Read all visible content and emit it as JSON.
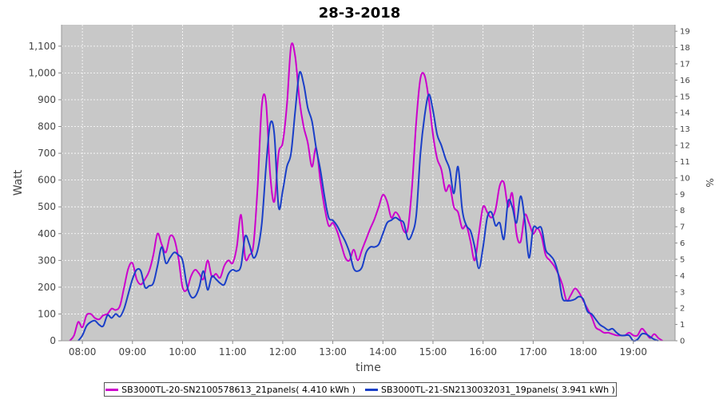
{
  "chart_data": {
    "type": "line",
    "title": "28-3-2018",
    "xlabel": "time",
    "ylabel": "Watt",
    "ylabel_right": "%",
    "xlim": [
      "07:35",
      "19:50"
    ],
    "ylim": [
      0,
      1180
    ],
    "ylim_right": [
      0,
      19.4
    ],
    "x_ticks": [
      "08:00",
      "09:00",
      "10:00",
      "11:00",
      "12:00",
      "13:00",
      "14:00",
      "15:00",
      "16:00",
      "17:00",
      "18:00",
      "19:00"
    ],
    "y_ticks": [
      "0",
      "100",
      "200",
      "300",
      "400",
      "500",
      "600",
      "700",
      "800",
      "900",
      "1,000",
      "1,100"
    ],
    "y_ticks_right": [
      "0",
      "1",
      "2",
      "3",
      "4",
      "5",
      "6",
      "7",
      "8",
      "9",
      "10",
      "11",
      "12",
      "13",
      "14",
      "15",
      "16",
      "17",
      "18",
      "19"
    ],
    "grid": true,
    "legend_position": "bottom",
    "background": "#c8c8c8",
    "series": [
      {
        "name": "SB3000TL-20-SN2100578613_21panels( 4.410 kWh )",
        "color": "#cc00cc",
        "points": [
          [
            "07:45",
            0
          ],
          [
            "07:50",
            20
          ],
          [
            "07:55",
            70
          ],
          [
            "08:00",
            50
          ],
          [
            "08:05",
            95
          ],
          [
            "08:10",
            100
          ],
          [
            "08:15",
            85
          ],
          [
            "08:20",
            80
          ],
          [
            "08:25",
            95
          ],
          [
            "08:30",
            100
          ],
          [
            "08:35",
            120
          ],
          [
            "08:40",
            115
          ],
          [
            "08:45",
            130
          ],
          [
            "08:50",
            200
          ],
          [
            "08:55",
            270
          ],
          [
            "09:00",
            290
          ],
          [
            "09:05",
            230
          ],
          [
            "09:10",
            210
          ],
          [
            "09:15",
            230
          ],
          [
            "09:20",
            260
          ],
          [
            "09:25",
            320
          ],
          [
            "09:30",
            400
          ],
          [
            "09:35",
            360
          ],
          [
            "09:40",
            330
          ],
          [
            "09:45",
            390
          ],
          [
            "09:50",
            380
          ],
          [
            "09:55",
            310
          ],
          [
            "10:00",
            200
          ],
          [
            "10:05",
            190
          ],
          [
            "10:10",
            240
          ],
          [
            "10:15",
            265
          ],
          [
            "10:20",
            250
          ],
          [
            "10:25",
            230
          ],
          [
            "10:30",
            300
          ],
          [
            "10:35",
            240
          ],
          [
            "10:40",
            250
          ],
          [
            "10:45",
            235
          ],
          [
            "10:50",
            280
          ],
          [
            "10:55",
            300
          ],
          [
            "11:00",
            290
          ],
          [
            "11:05",
            350
          ],
          [
            "11:10",
            470
          ],
          [
            "11:15",
            310
          ],
          [
            "11:20",
            320
          ],
          [
            "11:25",
            360
          ],
          [
            "11:30",
            580
          ],
          [
            "11:35",
            880
          ],
          [
            "11:40",
            890
          ],
          [
            "11:45",
            620
          ],
          [
            "11:50",
            520
          ],
          [
            "11:55",
            700
          ],
          [
            "12:00",
            740
          ],
          [
            "12:05",
            880
          ],
          [
            "12:10",
            1100
          ],
          [
            "12:15",
            1060
          ],
          [
            "12:20",
            900
          ],
          [
            "12:25",
            800
          ],
          [
            "12:30",
            740
          ],
          [
            "12:35",
            650
          ],
          [
            "12:40",
            720
          ],
          [
            "12:45",
            600
          ],
          [
            "12:50",
            500
          ],
          [
            "12:55",
            430
          ],
          [
            "13:00",
            440
          ],
          [
            "13:05",
            410
          ],
          [
            "13:10",
            360
          ],
          [
            "13:15",
            310
          ],
          [
            "13:20",
            300
          ],
          [
            "13:25",
            340
          ],
          [
            "13:30",
            300
          ],
          [
            "13:35",
            340
          ],
          [
            "13:40",
            380
          ],
          [
            "13:45",
            420
          ],
          [
            "13:50",
            455
          ],
          [
            "13:55",
            500
          ],
          [
            "14:00",
            545
          ],
          [
            "14:05",
            520
          ],
          [
            "14:10",
            460
          ],
          [
            "14:15",
            480
          ],
          [
            "14:20",
            460
          ],
          [
            "14:25",
            410
          ],
          [
            "14:30",
            420
          ],
          [
            "14:35",
            580
          ],
          [
            "14:40",
            820
          ],
          [
            "14:45",
            980
          ],
          [
            "14:50",
            990
          ],
          [
            "14:55",
            900
          ],
          [
            "15:00",
            770
          ],
          [
            "15:05",
            680
          ],
          [
            "15:10",
            640
          ],
          [
            "15:15",
            560
          ],
          [
            "15:20",
            580
          ],
          [
            "15:25",
            500
          ],
          [
            "15:30",
            480
          ],
          [
            "15:35",
            420
          ],
          [
            "15:40",
            430
          ],
          [
            "15:45",
            370
          ],
          [
            "15:50",
            300
          ],
          [
            "15:55",
            400
          ],
          [
            "16:00",
            500
          ],
          [
            "16:05",
            480
          ],
          [
            "16:10",
            460
          ],
          [
            "16:15",
            490
          ],
          [
            "16:20",
            580
          ],
          [
            "16:25",
            590
          ],
          [
            "16:30",
            500
          ],
          [
            "16:35",
            550
          ],
          [
            "16:40",
            400
          ],
          [
            "16:45",
            370
          ],
          [
            "16:50",
            470
          ],
          [
            "16:55",
            440
          ],
          [
            "17:00",
            400
          ],
          [
            "17:05",
            420
          ],
          [
            "17:10",
            390
          ],
          [
            "17:15",
            320
          ],
          [
            "17:20",
            300
          ],
          [
            "17:25",
            280
          ],
          [
            "17:30",
            250
          ],
          [
            "17:35",
            210
          ],
          [
            "17:40",
            150
          ],
          [
            "17:45",
            170
          ],
          [
            "17:50",
            195
          ],
          [
            "17:55",
            180
          ],
          [
            "18:00",
            150
          ],
          [
            "18:05",
            120
          ],
          [
            "18:10",
            90
          ],
          [
            "18:15",
            50
          ],
          [
            "18:20",
            40
          ],
          [
            "18:25",
            30
          ],
          [
            "18:30",
            30
          ],
          [
            "18:35",
            25
          ],
          [
            "18:40",
            20
          ],
          [
            "18:45",
            20
          ],
          [
            "18:50",
            20
          ],
          [
            "18:55",
            30
          ],
          [
            "19:00",
            20
          ],
          [
            "19:05",
            20
          ],
          [
            "19:10",
            45
          ],
          [
            "19:15",
            30
          ],
          [
            "19:20",
            10
          ],
          [
            "19:25",
            25
          ],
          [
            "19:30",
            10
          ],
          [
            "19:35",
            0
          ]
        ]
      },
      {
        "name": "SB3000TL-21-SN2130032031_19panels( 3.941 kWh )",
        "color": "#1a3fc8",
        "points": [
          [
            "07:55",
            0
          ],
          [
            "08:00",
            20
          ],
          [
            "08:05",
            55
          ],
          [
            "08:10",
            70
          ],
          [
            "08:15",
            75
          ],
          [
            "08:20",
            60
          ],
          [
            "08:25",
            55
          ],
          [
            "08:30",
            95
          ],
          [
            "08:35",
            85
          ],
          [
            "08:40",
            100
          ],
          [
            "08:45",
            90
          ],
          [
            "08:50",
            120
          ],
          [
            "08:55",
            175
          ],
          [
            "09:00",
            230
          ],
          [
            "09:05",
            265
          ],
          [
            "09:10",
            260
          ],
          [
            "09:15",
            200
          ],
          [
            "09:20",
            205
          ],
          [
            "09:25",
            215
          ],
          [
            "09:30",
            280
          ],
          [
            "09:35",
            350
          ],
          [
            "09:40",
            290
          ],
          [
            "09:45",
            310
          ],
          [
            "09:50",
            330
          ],
          [
            "09:55",
            320
          ],
          [
            "10:00",
            300
          ],
          [
            "10:05",
            210
          ],
          [
            "10:10",
            165
          ],
          [
            "10:15",
            165
          ],
          [
            "10:20",
            200
          ],
          [
            "10:25",
            260
          ],
          [
            "10:30",
            190
          ],
          [
            "10:35",
            240
          ],
          [
            "10:40",
            230
          ],
          [
            "10:45",
            215
          ],
          [
            "10:50",
            210
          ],
          [
            "10:55",
            250
          ],
          [
            "11:00",
            265
          ],
          [
            "11:05",
            260
          ],
          [
            "11:10",
            280
          ],
          [
            "11:15",
            390
          ],
          [
            "11:20",
            360
          ],
          [
            "11:25",
            310
          ],
          [
            "11:30",
            340
          ],
          [
            "11:35",
            440
          ],
          [
            "11:40",
            650
          ],
          [
            "11:45",
            810
          ],
          [
            "11:50",
            770
          ],
          [
            "11:55",
            500
          ],
          [
            "12:00",
            560
          ],
          [
            "12:05",
            650
          ],
          [
            "12:10",
            700
          ],
          [
            "12:15",
            860
          ],
          [
            "12:20",
            1000
          ],
          [
            "12:25",
            960
          ],
          [
            "12:30",
            870
          ],
          [
            "12:35",
            820
          ],
          [
            "12:40",
            720
          ],
          [
            "12:45",
            640
          ],
          [
            "12:50",
            540
          ],
          [
            "12:55",
            460
          ],
          [
            "13:00",
            450
          ],
          [
            "13:05",
            430
          ],
          [
            "13:10",
            400
          ],
          [
            "13:15",
            370
          ],
          [
            "13:20",
            330
          ],
          [
            "13:25",
            270
          ],
          [
            "13:30",
            260
          ],
          [
            "13:35",
            275
          ],
          [
            "13:40",
            330
          ],
          [
            "13:45",
            350
          ],
          [
            "13:50",
            350
          ],
          [
            "13:55",
            360
          ],
          [
            "14:00",
            400
          ],
          [
            "14:05",
            440
          ],
          [
            "14:10",
            450
          ],
          [
            "14:15",
            460
          ],
          [
            "14:20",
            450
          ],
          [
            "14:25",
            440
          ],
          [
            "14:30",
            380
          ],
          [
            "14:35",
            400
          ],
          [
            "14:40",
            470
          ],
          [
            "14:45",
            700
          ],
          [
            "14:50",
            840
          ],
          [
            "14:55",
            920
          ],
          [
            "15:00",
            860
          ],
          [
            "15:05",
            770
          ],
          [
            "15:10",
            730
          ],
          [
            "15:15",
            680
          ],
          [
            "15:20",
            640
          ],
          [
            "15:25",
            550
          ],
          [
            "15:30",
            650
          ],
          [
            "15:35",
            490
          ],
          [
            "15:40",
            430
          ],
          [
            "15:45",
            410
          ],
          [
            "15:50",
            350
          ],
          [
            "15:55",
            270
          ],
          [
            "16:00",
            350
          ],
          [
            "16:05",
            460
          ],
          [
            "16:10",
            480
          ],
          [
            "16:15",
            430
          ],
          [
            "16:20",
            440
          ],
          [
            "16:25",
            380
          ],
          [
            "16:30",
            520
          ],
          [
            "16:35",
            500
          ],
          [
            "16:40",
            440
          ],
          [
            "16:45",
            540
          ],
          [
            "16:50",
            450
          ],
          [
            "16:55",
            310
          ],
          [
            "17:00",
            420
          ],
          [
            "17:05",
            420
          ],
          [
            "17:10",
            420
          ],
          [
            "17:15",
            340
          ],
          [
            "17:20",
            320
          ],
          [
            "17:25",
            300
          ],
          [
            "17:30",
            250
          ],
          [
            "17:35",
            160
          ],
          [
            "17:40",
            150
          ],
          [
            "17:45",
            150
          ],
          [
            "17:50",
            155
          ],
          [
            "17:55",
            165
          ],
          [
            "18:00",
            155
          ],
          [
            "18:05",
            110
          ],
          [
            "18:10",
            100
          ],
          [
            "18:15",
            80
          ],
          [
            "18:20",
            60
          ],
          [
            "18:25",
            50
          ],
          [
            "18:30",
            40
          ],
          [
            "18:35",
            45
          ],
          [
            "18:40",
            30
          ],
          [
            "18:45",
            20
          ],
          [
            "18:50",
            20
          ],
          [
            "18:55",
            20
          ],
          [
            "19:00",
            0
          ],
          [
            "19:05",
            5
          ],
          [
            "19:10",
            25
          ],
          [
            "19:15",
            25
          ],
          [
            "19:20",
            15
          ],
          [
            "19:25",
            5
          ],
          [
            "19:30",
            0
          ]
        ]
      }
    ]
  }
}
